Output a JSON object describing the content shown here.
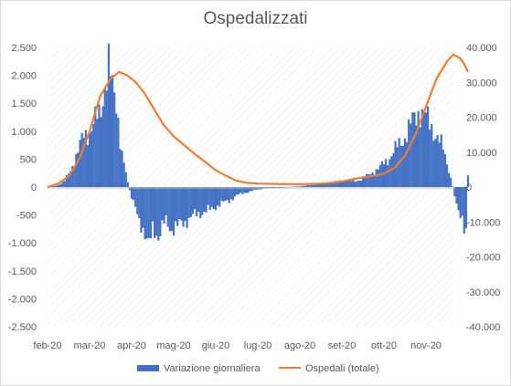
{
  "chart_data": {
    "type": "bar+line",
    "title": "Ospedalizzati",
    "x_labels": [
      "feb-20",
      "mar-20",
      "apr-20",
      "mag-20",
      "giu-20",
      "lug-20",
      "ago-20",
      "set-20",
      "ott-20",
      "nov-20"
    ],
    "y_left_ticks": [
      "2.500",
      "2.000",
      "1.500",
      "1.000",
      "500",
      "0",
      "-500",
      "-1.000",
      "-1.500",
      "-2.000",
      "-2.500"
    ],
    "y_right_ticks": [
      "40.000",
      "30.000",
      "20.000",
      "10.000",
      "0",
      "-10.000",
      "-20.000",
      "-30.000",
      "-40.000"
    ],
    "y_left_range": [
      -2500,
      2500
    ],
    "y_right_range": [
      -40000,
      40000
    ],
    "grid": "diagonal hatch",
    "legend_position": "bottom",
    "series": [
      {
        "name": "Variazione giornaliera",
        "kind": "bar",
        "axis": "left",
        "color": "#4472c4",
        "points": [
          [
            0.0,
            0
          ],
          [
            0.4,
            20
          ],
          [
            0.8,
            100
          ],
          [
            1.1,
            300
          ],
          [
            1.4,
            600
          ],
          [
            1.7,
            900
          ],
          [
            2.0,
            1000
          ],
          [
            2.2,
            1150
          ],
          [
            2.5,
            1300
          ],
          [
            2.7,
            1800
          ],
          [
            2.9,
            2200
          ],
          [
            3.1,
            1700
          ],
          [
            3.3,
            1500
          ],
          [
            3.5,
            700
          ],
          [
            3.8,
            100
          ],
          [
            4.0,
            -200
          ],
          [
            4.3,
            -500
          ],
          [
            4.6,
            -800
          ],
          [
            4.8,
            -1150
          ],
          [
            5.0,
            -700
          ],
          [
            5.3,
            -900
          ],
          [
            5.6,
            -600
          ],
          [
            5.9,
            -750
          ],
          [
            6.2,
            -700
          ],
          [
            6.6,
            -600
          ],
          [
            7.0,
            -500
          ],
          [
            7.4,
            -450
          ],
          [
            7.8,
            -400
          ],
          [
            8.2,
            -300
          ],
          [
            8.6,
            -250
          ],
          [
            9.0,
            -150
          ],
          [
            9.4,
            -100
          ],
          [
            9.8,
            -60
          ],
          [
            10.2,
            -30
          ],
          [
            10.6,
            -20
          ],
          [
            11.0,
            -10
          ],
          [
            11.4,
            0
          ],
          [
            11.8,
            10
          ],
          [
            12.2,
            20
          ],
          [
            12.6,
            40
          ],
          [
            13.0,
            60
          ],
          [
            13.4,
            80
          ],
          [
            13.8,
            100
          ],
          [
            14.2,
            120
          ],
          [
            14.6,
            100
          ],
          [
            15.0,
            150
          ],
          [
            15.4,
            250
          ],
          [
            15.8,
            350
          ],
          [
            16.2,
            500
          ],
          [
            16.6,
            700
          ],
          [
            17.0,
            900
          ],
          [
            17.4,
            1200
          ],
          [
            17.7,
            1400
          ],
          [
            18.0,
            1250
          ],
          [
            18.4,
            1000
          ],
          [
            18.8,
            700
          ],
          [
            19.1,
            300
          ],
          [
            19.4,
            -200
          ],
          [
            19.7,
            -600
          ],
          [
            19.9,
            -1000
          ],
          [
            20.0,
            200
          ]
        ]
      },
      {
        "name": "Ospedali (totale)",
        "kind": "line",
        "axis": "right",
        "color": "#ed7d31",
        "points": [
          [
            0.0,
            0
          ],
          [
            0.5,
            1000
          ],
          [
            1.0,
            3000
          ],
          [
            1.5,
            8000
          ],
          [
            2.0,
            16000
          ],
          [
            2.5,
            26000
          ],
          [
            3.0,
            31000
          ],
          [
            3.4,
            33000
          ],
          [
            3.8,
            32000
          ],
          [
            4.2,
            30000
          ],
          [
            4.6,
            27000
          ],
          [
            5.0,
            23000
          ],
          [
            5.5,
            18000
          ],
          [
            6.0,
            14500
          ],
          [
            6.5,
            12000
          ],
          [
            7.0,
            9500
          ],
          [
            7.5,
            7200
          ],
          [
            8.0,
            4800
          ],
          [
            8.5,
            3200
          ],
          [
            9.0,
            1800
          ],
          [
            9.5,
            1200
          ],
          [
            10.0,
            1000
          ],
          [
            11.0,
            900
          ],
          [
            12.0,
            800
          ],
          [
            13.0,
            1000
          ],
          [
            13.5,
            1200
          ],
          [
            14.0,
            1600
          ],
          [
            14.5,
            2200
          ],
          [
            15.0,
            2800
          ],
          [
            15.5,
            3200
          ],
          [
            16.0,
            3800
          ],
          [
            16.5,
            5500
          ],
          [
            17.0,
            9000
          ],
          [
            17.5,
            15000
          ],
          [
            18.0,
            23000
          ],
          [
            18.5,
            31000
          ],
          [
            19.0,
            36000
          ],
          [
            19.3,
            38000
          ],
          [
            19.6,
            37000
          ],
          [
            19.8,
            35500
          ],
          [
            20.0,
            33000
          ]
        ]
      }
    ]
  }
}
